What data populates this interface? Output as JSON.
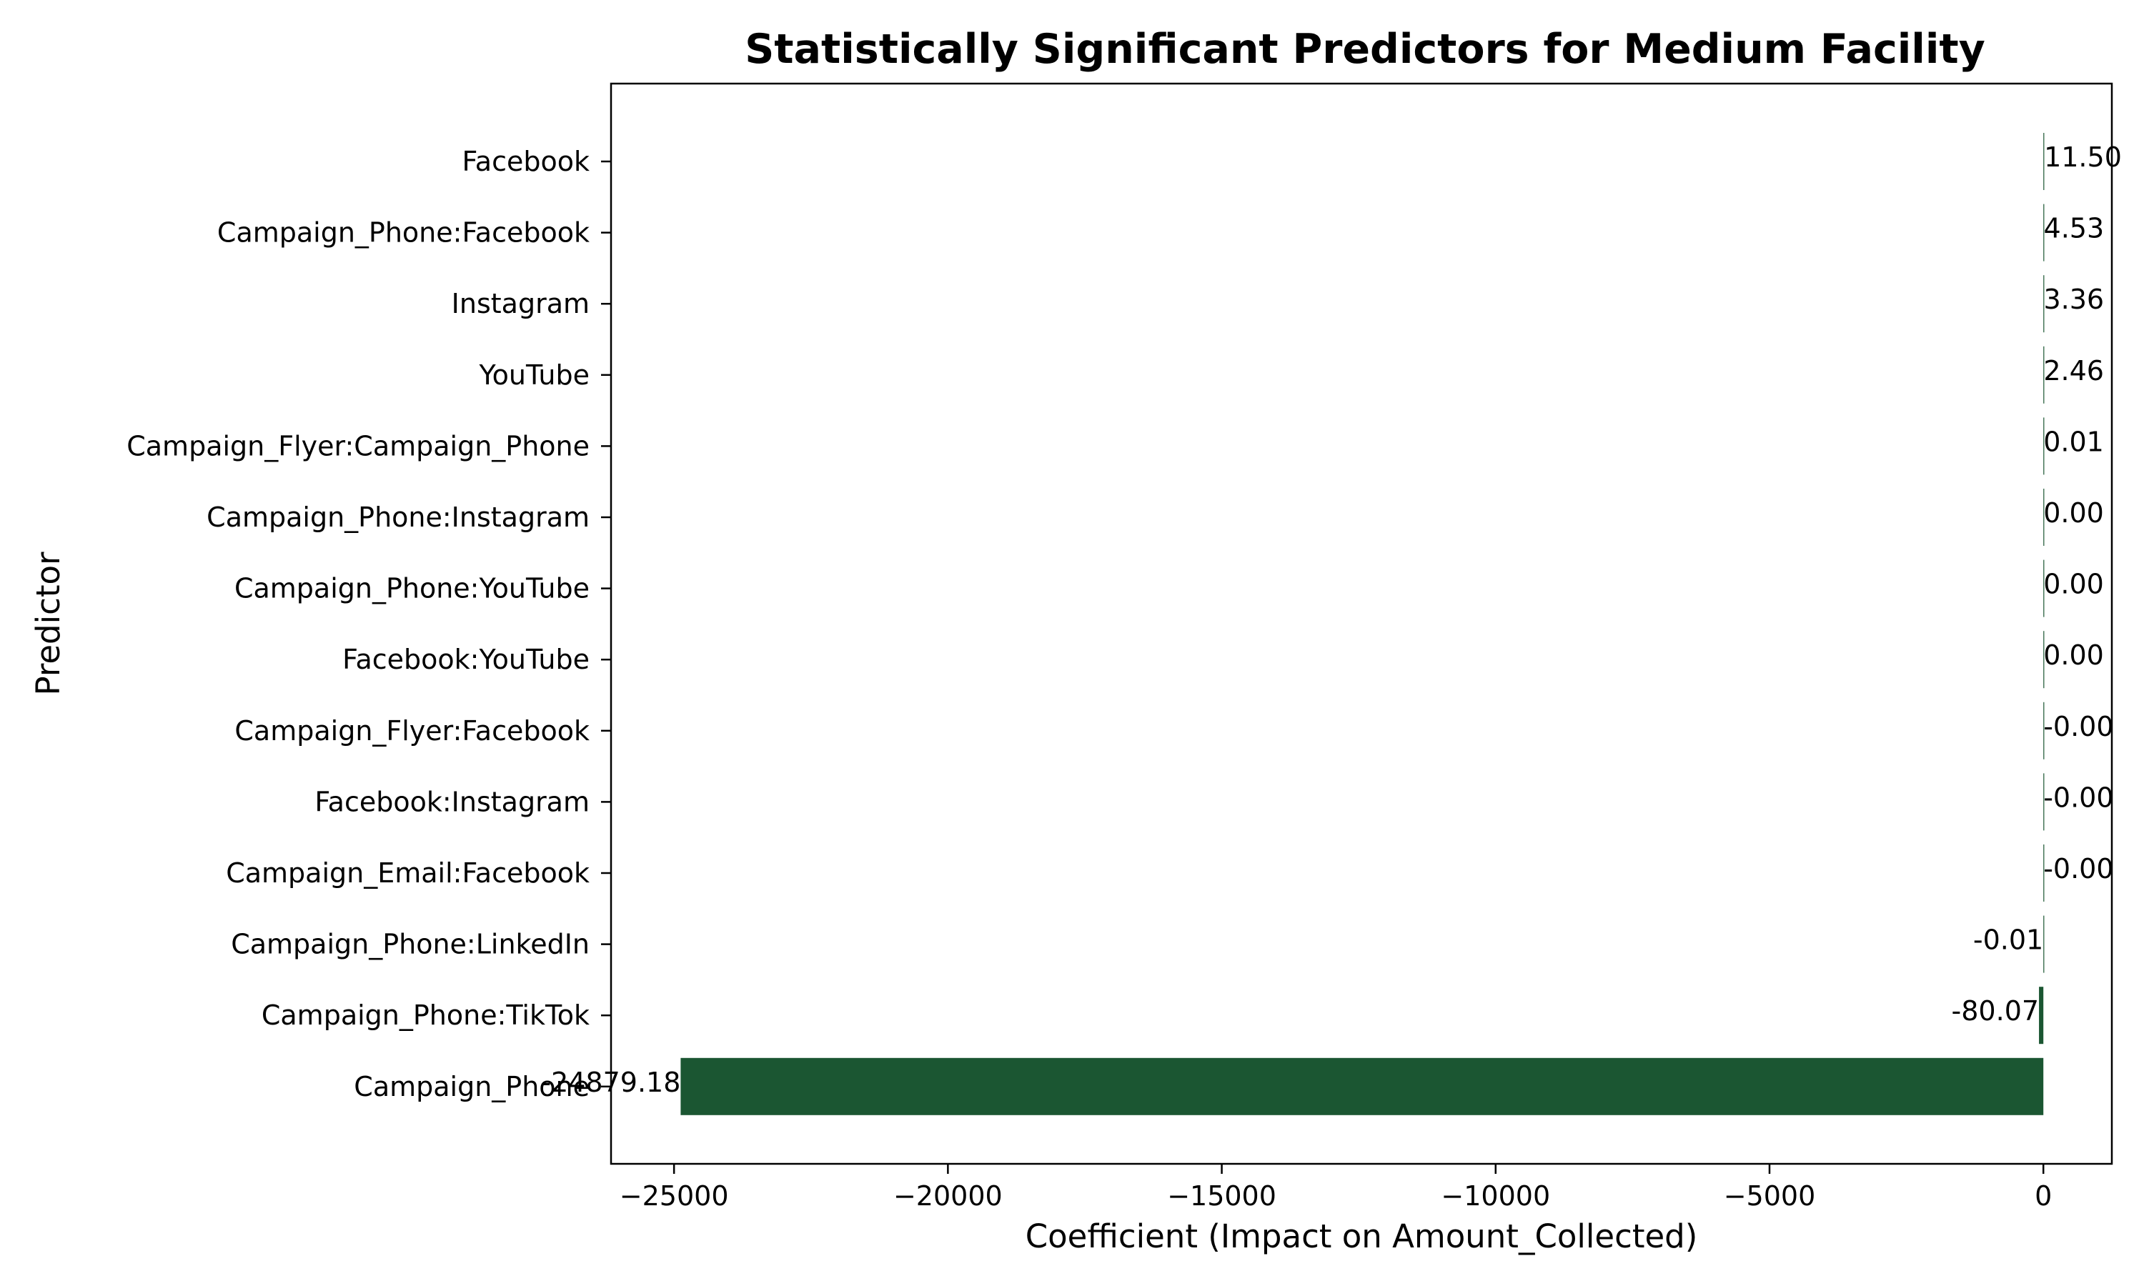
{
  "chart_data": {
    "type": "bar",
    "orientation": "horizontal",
    "title": "Statistically Significant Predictors for Medium Facility",
    "xlabel": "Coefficient (Impact on Amount_Collected)",
    "ylabel": "Predictor",
    "xlim": [
      -26150,
      1250
    ],
    "xticks": [
      -25000,
      -20000,
      -15000,
      -10000,
      -5000,
      0
    ],
    "xtick_labels": [
      "−25000",
      "−20000",
      "−15000",
      "−10000",
      "−5000",
      "0"
    ],
    "grid": false,
    "bar_color": "#1b5632",
    "categories": [
      "Facebook",
      "Campaign_Phone:Facebook",
      "Instagram",
      "YouTube",
      "Campaign_Flyer:Campaign_Phone",
      "Campaign_Phone:Instagram",
      "Campaign_Phone:YouTube",
      "Facebook:YouTube",
      "Campaign_Flyer:Facebook",
      "Facebook:Instagram",
      "Campaign_Email:Facebook",
      "Campaign_Phone:LinkedIn",
      "Campaign_Phone:TikTok",
      "Campaign_Phone"
    ],
    "values": [
      11.5,
      4.53,
      3.36,
      2.46,
      0.01,
      0.0,
      0.0,
      0.0,
      -0.0,
      -0.0,
      -0.0,
      -0.01,
      -80.07,
      -24879.18
    ],
    "value_labels": [
      "11.50",
      "4.53",
      "3.36",
      "2.46",
      "0.01",
      "0.00",
      "0.00",
      "0.00",
      "-0.00",
      "-0.00",
      "-0.00",
      "-0.01",
      "-80.07",
      "-24879.18"
    ]
  }
}
